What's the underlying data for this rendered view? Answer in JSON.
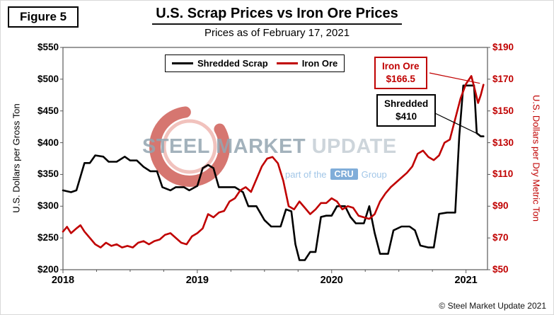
{
  "header": {
    "figure_label": "Figure 5",
    "title": "U.S. Scrap Prices vs Iron Ore Prices",
    "subtitle": "Prices as of February 17, 2021"
  },
  "legend": {
    "items": [
      {
        "label": "Shredded Scrap",
        "color": "#000000"
      },
      {
        "label": "Iron Ore",
        "color": "#C00000"
      }
    ]
  },
  "callouts": {
    "iron_ore": {
      "line1": "Iron Ore",
      "line2": "$166.5",
      "color": "#C00000"
    },
    "shredded": {
      "line1": "Shredded",
      "line2": "$410",
      "color": "#000000"
    }
  },
  "watermark": {
    "steel": "STEEL",
    "market": "MARKET",
    "update": "UPDATE",
    "part_of_the": "part of the",
    "cru": "CRU",
    "group": "Group"
  },
  "footer": {
    "copyright": "© Steel Market Update 2021"
  },
  "chart_data": {
    "type": "line",
    "title": "U.S. Scrap Prices vs Iron Ore Prices",
    "subtitle": "Prices as of February 17, 2021",
    "x_range": [
      2018,
      2021.16
    ],
    "x_tick_values": [
      2018,
      2019,
      2020,
      2021
    ],
    "x_tick_labels": [
      "2018",
      "2019",
      "2020",
      "2021"
    ],
    "grid": false,
    "legend_position": "top-center",
    "left_axis": {
      "title": "U.S. Dollars per Gross Ton",
      "min": 200,
      "max": 550,
      "step": 50,
      "tick_prefix": "$",
      "color": "#000000"
    },
    "right_axis": {
      "title": "U.S. Dollars per Dry Metric Ton",
      "min": 50,
      "max": 190,
      "step": 20,
      "tick_prefix": "$",
      "color": "#C00000"
    },
    "series": [
      {
        "name": "Shredded Scrap",
        "axis": "left",
        "color": "#000000",
        "units": "USD per gross ton",
        "x": [
          2018.0,
          2018.06,
          2018.1,
          2018.16,
          2018.2,
          2018.24,
          2018.3,
          2018.34,
          2018.4,
          2018.46,
          2018.5,
          2018.55,
          2018.6,
          2018.65,
          2018.7,
          2018.74,
          2018.8,
          2018.84,
          2018.9,
          2018.94,
          2019.0,
          2019.04,
          2019.08,
          2019.12,
          2019.16,
          2019.22,
          2019.28,
          2019.34,
          2019.38,
          2019.44,
          2019.5,
          2019.55,
          2019.62,
          2019.66,
          2019.7,
          2019.73,
          2019.76,
          2019.8,
          2019.84,
          2019.88,
          2019.92,
          2019.96,
          2020.0,
          2020.04,
          2020.1,
          2020.14,
          2020.18,
          2020.24,
          2020.28,
          2020.32,
          2020.36,
          2020.42,
          2020.46,
          2020.52,
          2020.58,
          2020.62,
          2020.66,
          2020.72,
          2020.76,
          2020.8,
          2020.86,
          2020.92,
          2020.95,
          2020.98,
          2021.06,
          2021.08,
          2021.11,
          2021.13
        ],
        "values": [
          325,
          322,
          325,
          368,
          368,
          380,
          378,
          370,
          370,
          378,
          372,
          372,
          362,
          355,
          355,
          330,
          325,
          330,
          330,
          325,
          332,
          360,
          365,
          360,
          330,
          330,
          330,
          322,
          300,
          300,
          278,
          268,
          268,
          295,
          292,
          240,
          215,
          215,
          228,
          228,
          283,
          285,
          285,
          300,
          300,
          283,
          273,
          273,
          300,
          258,
          225,
          225,
          262,
          268,
          268,
          262,
          238,
          235,
          235,
          288,
          290,
          290,
          410,
          490,
          490,
          415,
          410,
          410
        ],
        "last_value": 410
      },
      {
        "name": "Iron Ore",
        "axis": "right",
        "color": "#C00000",
        "units": "USD per dry metric ton",
        "x": [
          2018.0,
          2018.03,
          2018.06,
          2018.1,
          2018.13,
          2018.16,
          2018.2,
          2018.24,
          2018.28,
          2018.32,
          2018.36,
          2018.4,
          2018.44,
          2018.48,
          2018.52,
          2018.56,
          2018.6,
          2018.64,
          2018.68,
          2018.72,
          2018.76,
          2018.8,
          2018.84,
          2018.88,
          2018.92,
          2018.96,
          2019.0,
          2019.04,
          2019.08,
          2019.12,
          2019.16,
          2019.2,
          2019.24,
          2019.28,
          2019.32,
          2019.36,
          2019.4,
          2019.44,
          2019.48,
          2019.52,
          2019.56,
          2019.6,
          2019.64,
          2019.68,
          2019.72,
          2019.76,
          2019.8,
          2019.84,
          2019.88,
          2019.92,
          2019.96,
          2020.0,
          2020.04,
          2020.08,
          2020.12,
          2020.16,
          2020.2,
          2020.24,
          2020.28,
          2020.32,
          2020.36,
          2020.4,
          2020.44,
          2020.48,
          2020.52,
          2020.56,
          2020.6,
          2020.64,
          2020.68,
          2020.72,
          2020.76,
          2020.8,
          2020.84,
          2020.88,
          2020.92,
          2020.96,
          2021.0,
          2021.04,
          2021.07,
          2021.09,
          2021.11,
          2021.13
        ],
        "values": [
          74,
          77,
          73,
          76,
          78,
          74,
          70,
          66,
          64,
          67,
          65,
          66,
          64,
          65,
          64,
          67,
          68,
          66,
          68,
          69,
          72,
          73,
          70,
          67,
          66,
          71,
          73,
          76,
          85,
          83,
          86,
          87,
          93,
          95,
          100,
          102,
          99,
          107,
          115,
          120,
          121,
          117,
          106,
          90,
          88,
          93,
          89,
          85,
          88,
          92,
          92,
          95,
          93,
          88,
          90,
          89,
          84,
          83,
          82,
          85,
          93,
          98,
          102,
          105,
          108,
          111,
          115,
          123,
          125,
          121,
          119,
          122,
          130,
          132,
          145,
          158,
          167,
          172,
          162,
          155,
          160,
          166.5
        ],
        "last_value": 166.5
      }
    ]
  }
}
